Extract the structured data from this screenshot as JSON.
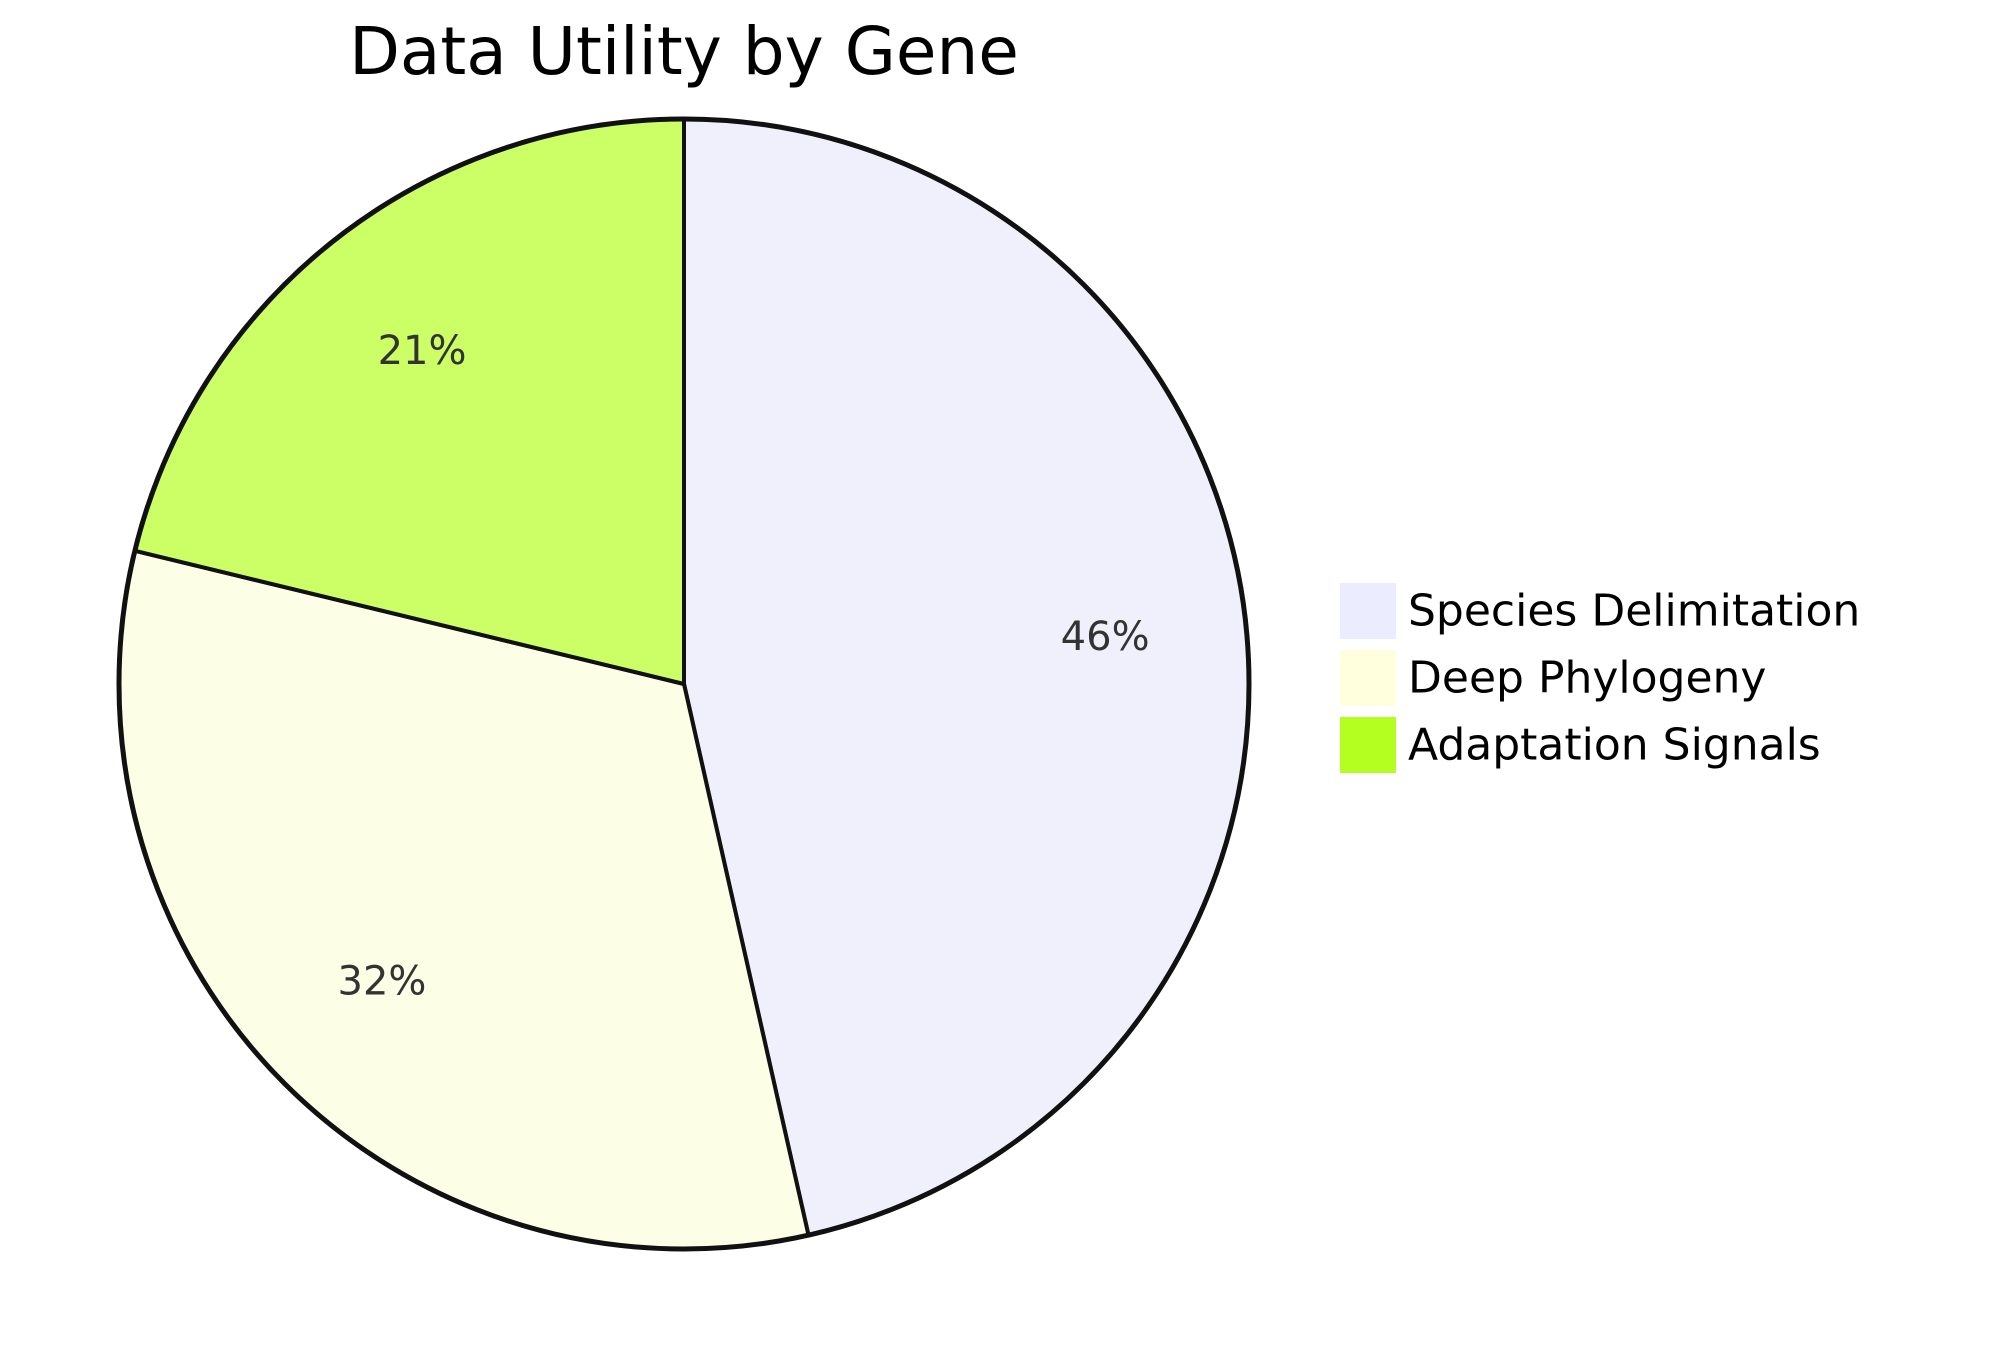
{
  "chart_data": {
    "type": "pie",
    "title": "Data Utility by Gene",
    "slices": [
      {
        "label": "Species Delimitation",
        "value": 46,
        "display": "46%",
        "color": "#f0f0fc"
      },
      {
        "label": "Deep Phylogeny",
        "value": 32,
        "display": "32%",
        "color": "#fdfee6"
      },
      {
        "label": "Adaptation Signals",
        "value": 21,
        "display": "21%",
        "color": "#ccff66"
      }
    ],
    "legend": {
      "placement": "right",
      "swatches": [
        "#ececff",
        "#ffffde",
        "#b5ff20"
      ]
    },
    "start": "top",
    "direction": "clockwise"
  }
}
